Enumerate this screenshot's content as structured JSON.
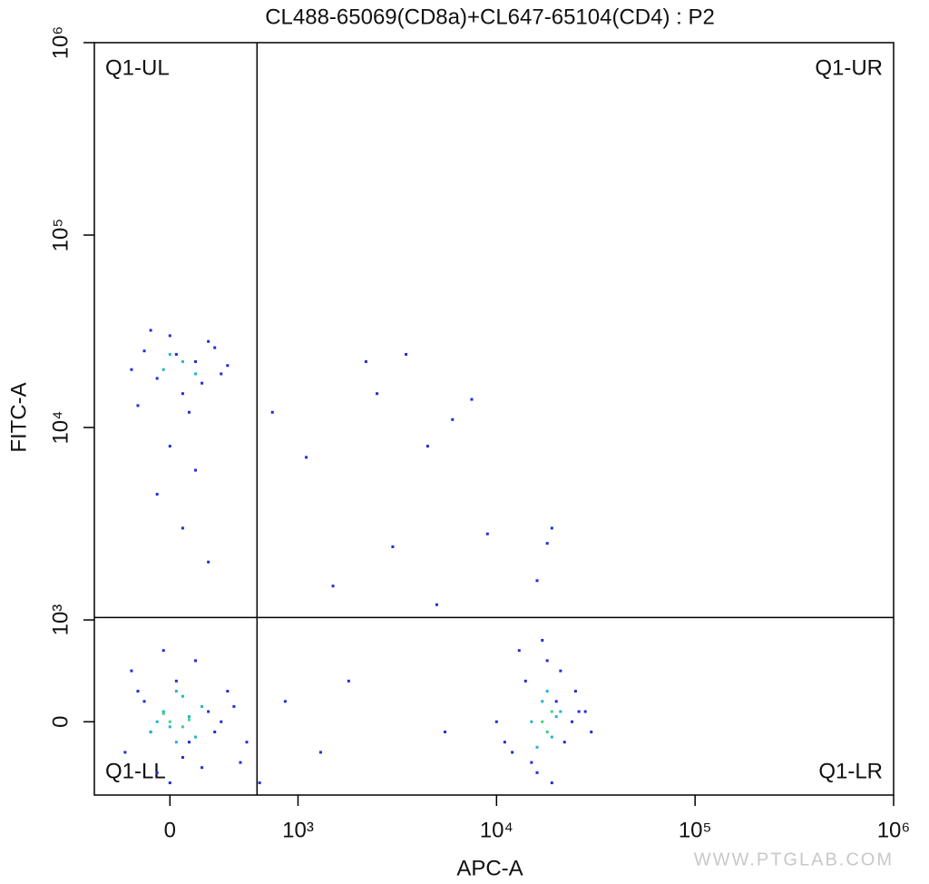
{
  "chart_data": {
    "type": "scatter",
    "title": "CL488-65069(CD8a)+CL647-65104(CD4) : P2",
    "x_label": "APC-A",
    "y_label": "FITC-A",
    "x_scale": "biexponential",
    "y_scale": "biexponential",
    "xlim": [
      -590,
      1000000
    ],
    "ylim": [
      -720,
      1000000
    ],
    "xticks": [
      0,
      {
        "value": 1000,
        "label": "10³"
      },
      {
        "value": 10000,
        "label": "10⁴"
      },
      {
        "value": 100000,
        "label": "10⁵"
      },
      {
        "value": 1000000,
        "label": "10⁶"
      }
    ],
    "yticks": [
      0,
      {
        "value": 1000,
        "label": "10³"
      },
      {
        "value": 10000,
        "label": "10⁴"
      },
      {
        "value": 100000,
        "label": "10⁵"
      },
      {
        "value": 1000000,
        "label": "10⁶"
      }
    ],
    "gates": {
      "x": 680,
      "y": 1030
    },
    "quadrants": {
      "ul": "Q1-UL",
      "ur": "Q1-UR",
      "ll": "Q1-LL",
      "lr": "Q1-LR"
    },
    "watermark": "WWW.PTGLAB.COM",
    "series": [
      {
        "color": "#1f2fd6",
        "x": [
          -350,
          -200,
          -100,
          50,
          150,
          300,
          450,
          550,
          -300,
          -150,
          0,
          200,
          400,
          600,
          -250,
          100,
          350,
          -50,
          250,
          500,
          -300,
          -200,
          -100,
          0,
          100,
          200,
          300,
          400,
          -250,
          -150,
          50,
          150,
          250,
          350,
          450,
          0,
          200,
          -100,
          100,
          300,
          10000,
          12000,
          14000,
          16000,
          18000,
          20000,
          22000,
          25000,
          28000,
          30000,
          13000,
          15000,
          17000,
          19000,
          21000,
          24000,
          11000,
          26000,
          800,
          1100,
          1500,
          2200,
          3000,
          4500,
          6000,
          7500,
          9000,
          2500,
          3500,
          5000,
          1800,
          1300,
          700,
          900,
          19000,
          18000,
          16000,
          5500
        ],
        "y": [
          -300,
          200,
          -500,
          400,
          -200,
          100,
          300,
          -400,
          500,
          -100,
          -600,
          600,
          0,
          -200,
          300,
          -350,
          -100,
          700,
          -450,
          150,
          20000,
          25000,
          18000,
          30000,
          15000,
          22000,
          28000,
          19000,
          13000,
          32000,
          24000,
          12000,
          17000,
          26000,
          21000,
          8000,
          6000,
          4500,
          3000,
          2000,
          0,
          -300,
          400,
          -500,
          600,
          200,
          -200,
          300,
          100,
          -100,
          700,
          -400,
          800,
          -600,
          500,
          0,
          -200,
          100,
          12000,
          7000,
          1500,
          22000,
          2400,
          8000,
          11000,
          14000,
          2800,
          15000,
          24000,
          1200,
          400,
          -300,
          -600,
          200,
          3000,
          2500,
          1600,
          -100
        ]
      },
      {
        "color": "#20b4d2",
        "x": [
          -150,
          -50,
          50,
          150,
          250,
          0,
          100,
          -100,
          200,
          50,
          -50,
          100,
          200,
          0,
          15000,
          17000,
          19000,
          21000,
          16000,
          18000,
          20000
        ],
        "y": [
          -100,
          100,
          -200,
          50,
          150,
          -50,
          250,
          0,
          -150,
          300,
          20000,
          22000,
          19000,
          24000,
          0,
          200,
          -150,
          100,
          -250,
          300,
          50
        ]
      },
      {
        "color": "#3fd27c",
        "x": [
          0,
          100,
          -50,
          150,
          17000,
          19000,
          18000
        ],
        "y": [
          0,
          -50,
          80,
          20,
          0,
          100,
          -100
        ]
      }
    ]
  }
}
